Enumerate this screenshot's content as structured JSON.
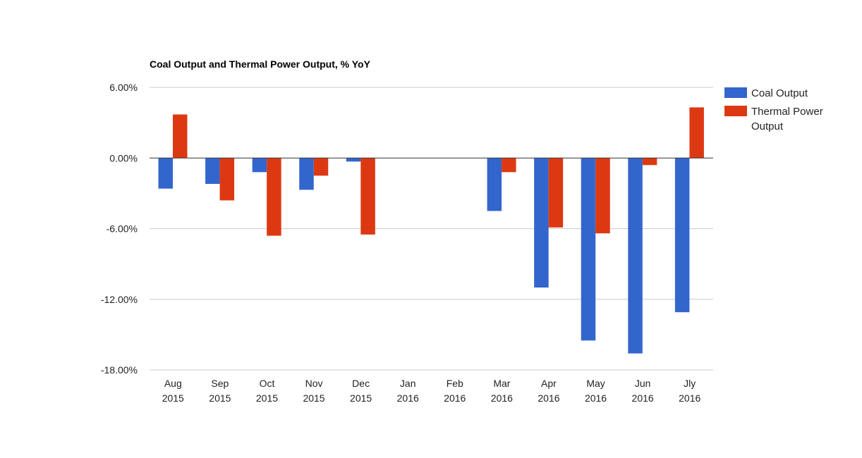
{
  "chart_data": {
    "type": "bar",
    "title": "Coal Output and Thermal Power Output, % YoY",
    "xlabel": "",
    "ylabel": "",
    "categories": [
      [
        "Aug",
        "2015"
      ],
      [
        "Sep",
        "2015"
      ],
      [
        "Oct",
        "2015"
      ],
      [
        "Nov",
        "2015"
      ],
      [
        "Dec",
        "2015"
      ],
      [
        "Jan",
        "2016"
      ],
      [
        "Feb",
        "2016"
      ],
      [
        "Mar",
        "2016"
      ],
      [
        "Apr",
        "2016"
      ],
      [
        "May",
        "2016"
      ],
      [
        "Jun",
        "2016"
      ],
      [
        "Jly",
        "2016"
      ]
    ],
    "series": [
      {
        "name": "Coal Output",
        "legend_lines": [
          "Coal Output"
        ],
        "color": "#3366cc",
        "values": [
          -2.6,
          -2.2,
          -1.2,
          -2.7,
          -0.3,
          null,
          null,
          -4.5,
          -11.0,
          -15.5,
          -16.6,
          -13.1
        ]
      },
      {
        "name": "Thermal Power Output",
        "legend_lines": [
          "Thermal Power",
          "Output"
        ],
        "color": "#dc3912",
        "values": [
          3.7,
          -3.6,
          -6.6,
          -1.5,
          -6.5,
          null,
          null,
          -1.2,
          -5.9,
          -6.4,
          -0.6,
          4.3
        ]
      }
    ],
    "ylim": [
      -18,
      6
    ],
    "yticks": [
      6,
      0,
      -6,
      -12,
      -18
    ],
    "ytick_labels": [
      "6.00%",
      "0.00%",
      "-6.00%",
      "-12.00%",
      "-18.00%"
    ],
    "grid": true,
    "legend_position": "right"
  }
}
